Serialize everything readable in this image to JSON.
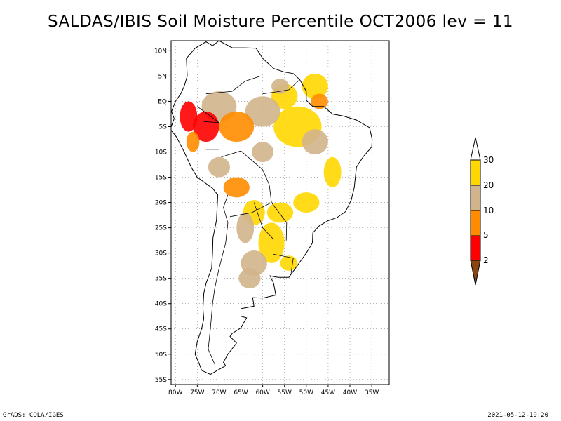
{
  "title": "SALDAS/IBIS Soil Moisture Percentile OCT2006 lev = 11",
  "footer": {
    "left": "GrADS: COLA/IGES",
    "right": "2021-05-12-19:20"
  },
  "map": {
    "lon_range": [
      -81,
      -31
    ],
    "lat_range": [
      -56,
      12
    ],
    "lat_ticks": [
      {
        "value": 10,
        "label": "10N"
      },
      {
        "value": 5,
        "label": "5N"
      },
      {
        "value": 0,
        "label": "EQ"
      },
      {
        "value": -5,
        "label": "5S"
      },
      {
        "value": -10,
        "label": "10S"
      },
      {
        "value": -15,
        "label": "15S"
      },
      {
        "value": -20,
        "label": "20S"
      },
      {
        "value": -25,
        "label": "25S"
      },
      {
        "value": -30,
        "label": "30S"
      },
      {
        "value": -35,
        "label": "35S"
      },
      {
        "value": -40,
        "label": "40S"
      },
      {
        "value": -45,
        "label": "45S"
      },
      {
        "value": -50,
        "label": "50S"
      },
      {
        "value": -55,
        "label": "55S"
      }
    ],
    "lon_ticks": [
      {
        "value": -80,
        "label": "80W"
      },
      {
        "value": -75,
        "label": "75W"
      },
      {
        "value": -70,
        "label": "70W"
      },
      {
        "value": -65,
        "label": "65W"
      },
      {
        "value": -60,
        "label": "60W"
      },
      {
        "value": -55,
        "label": "55W"
      },
      {
        "value": -50,
        "label": "50W"
      },
      {
        "value": -45,
        "label": "45W"
      },
      {
        "value": -40,
        "label": "40W"
      },
      {
        "value": -35,
        "label": "35W"
      }
    ]
  },
  "colorbar": {
    "levels": [
      "2",
      "5",
      "10",
      "20",
      "30"
    ],
    "colors": [
      "#8B4513",
      "#FF0000",
      "#FF8C00",
      "#D2B48C",
      "#FFD700",
      "#FFFFFF"
    ]
  }
}
